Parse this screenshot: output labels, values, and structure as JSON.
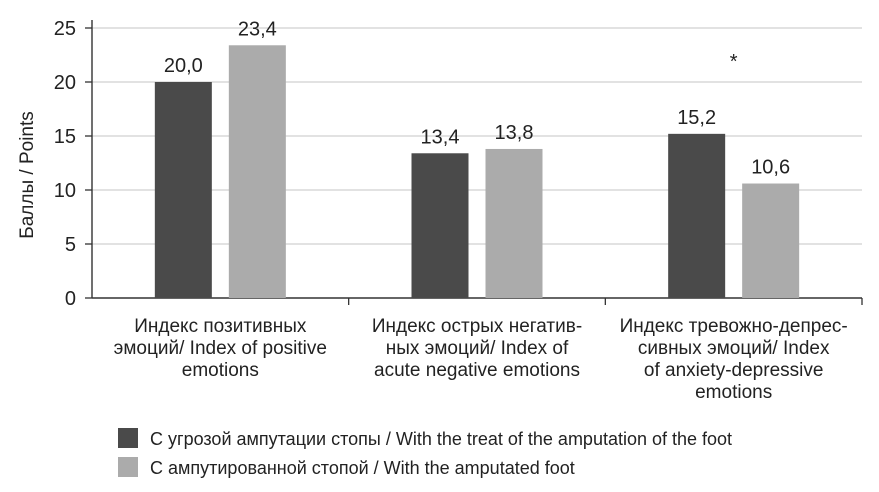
{
  "chart_data": {
    "type": "bar",
    "categories": [
      [
        "Индекс позитивных",
        "эмоций/ Index of positive",
        "emotions"
      ],
      [
        "Индекс острых негатив-",
        "ных эмоций/ Index of",
        "acute negative emotions"
      ],
      [
        "Индекс тревожно-депрес-",
        "сивных эмоций/ Index",
        "of anxiety-depressive",
        "emotions"
      ]
    ],
    "series": [
      {
        "name": "С угрозой ампутации стопы / With the treat of the amputation of the foot",
        "values": [
          20.0,
          13.4,
          15.2
        ],
        "labels": [
          "20,0",
          "13,4",
          "15,2"
        ],
        "color": "#4a4a4a"
      },
      {
        "name": "С ампутированной стопой / With the amputated foot",
        "values": [
          23.4,
          13.8,
          10.6
        ],
        "labels": [
          "23,4",
          "13,8",
          "10,6"
        ],
        "color": "#ababab"
      }
    ],
    "ylabel": "Баллы / Points",
    "ylim": [
      0,
      25
    ],
    "yticks": [
      0,
      5,
      10,
      15,
      20,
      25
    ],
    "grid": true,
    "legend": "bottom-left",
    "annotations": [
      {
        "text": "*",
        "category": 2
      }
    ]
  }
}
